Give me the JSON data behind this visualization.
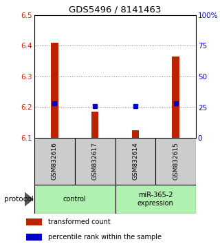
{
  "title": "GDS5496 / 8141463",
  "samples": [
    "GSM832616",
    "GSM832617",
    "GSM832614",
    "GSM832615"
  ],
  "transformed_counts": [
    6.41,
    6.185,
    6.125,
    6.365
  ],
  "percentile_ranks": [
    28,
    26,
    26,
    28
  ],
  "bar_base": 6.1,
  "ylim_left": [
    6.1,
    6.5
  ],
  "ylim_right": [
    0,
    100
  ],
  "yticks_left": [
    6.1,
    6.2,
    6.3,
    6.4,
    6.5
  ],
  "yticks_right": [
    0,
    25,
    50,
    75,
    100
  ],
  "ytick_labels_right": [
    "0",
    "25",
    "50",
    "75",
    "100%"
  ],
  "bar_color": "#bb2200",
  "square_color": "#0000cc",
  "groups": [
    {
      "label": "control",
      "samples": [
        0,
        1
      ],
      "color": "#b0f0b0"
    },
    {
      "label": "miR-365-2\nexpression",
      "samples": [
        2,
        3
      ],
      "color": "#b0f0b0"
    }
  ],
  "sample_box_color": "#cccccc",
  "legend_items": [
    {
      "color": "#bb2200",
      "label": "transformed count"
    },
    {
      "color": "#0000cc",
      "label": "percentile rank within the sample"
    }
  ],
  "protocol_label": "protocol",
  "dotted_line_color": "#777777",
  "bar_width": 0.18
}
